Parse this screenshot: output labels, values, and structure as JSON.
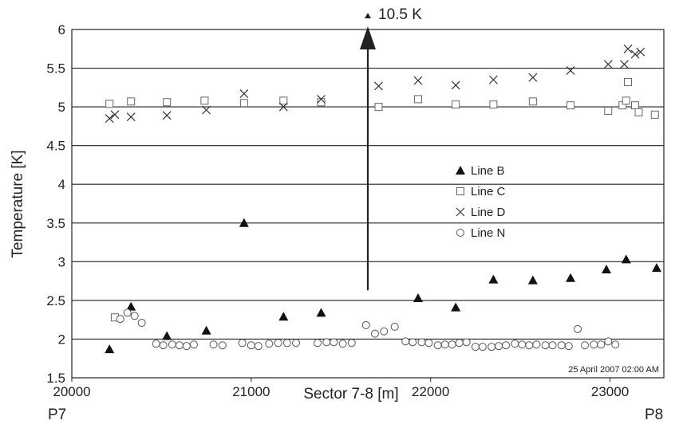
{
  "chart_data": {
    "type": "scatter",
    "xlabel": "Sector 7-8 [m]",
    "ylabel": "Temperature [K]",
    "xlim": [
      20000,
      23300
    ],
    "ylim": [
      1.5,
      6
    ],
    "xticks": [
      20000,
      21000,
      22000,
      23000
    ],
    "yticks": [
      1.5,
      2,
      2.5,
      3,
      3.5,
      4,
      4.5,
      5,
      5.5,
      6
    ],
    "grid": "horizontal",
    "legend_position": "center-right",
    "endpoint_labels": {
      "left": "P7",
      "right": "P8"
    },
    "timestamp": "25 April 2007 02:00 AM",
    "annotation": {
      "text": "10.5 K",
      "x": 21650,
      "y_from": 2.63,
      "y_to": 6.0
    },
    "series": [
      {
        "name": "Line B",
        "marker": "triangle",
        "x": [
          20210,
          20330,
          20530,
          20750,
          20960,
          21180,
          21390,
          21930,
          22140,
          22350,
          22570,
          22780,
          22980,
          23090,
          23260
        ],
        "y": [
          1.87,
          2.42,
          2.04,
          2.11,
          3.5,
          2.29,
          2.34,
          2.53,
          2.41,
          2.77,
          2.76,
          2.79,
          2.9,
          3.03,
          2.92
        ]
      },
      {
        "name": "Line C",
        "marker": "square",
        "x": [
          20210,
          20240,
          20330,
          20530,
          20740,
          20960,
          21180,
          21390,
          21710,
          21930,
          22140,
          22350,
          22570,
          22780,
          22990,
          23070,
          23090,
          23100,
          23140,
          23160,
          23250
        ],
        "y": [
          5.04,
          2.28,
          5.07,
          5.06,
          5.08,
          5.05,
          5.08,
          5.06,
          5.0,
          5.1,
          5.03,
          5.03,
          5.07,
          5.02,
          4.95,
          5.02,
          5.08,
          5.32,
          5.02,
          4.93,
          4.9
        ]
      },
      {
        "name": "Line D",
        "marker": "x",
        "x": [
          20210,
          20240,
          20330,
          20530,
          20750,
          20960,
          21180,
          21390,
          21710,
          21930,
          22140,
          22350,
          22570,
          22780,
          22990,
          23080,
          23100,
          23140,
          23170
        ],
        "y": [
          4.85,
          4.9,
          4.87,
          4.89,
          4.96,
          5.17,
          5.0,
          5.1,
          5.27,
          5.34,
          5.28,
          5.35,
          5.38,
          5.47,
          5.55,
          5.55,
          5.75,
          5.68,
          5.71
        ]
      },
      {
        "name": "Line N",
        "marker": "circle",
        "x": [
          20270,
          20310,
          20350,
          20390,
          20470,
          20510,
          20560,
          20600,
          20640,
          20680,
          20790,
          20840,
          20950,
          21000,
          21040,
          21100,
          21150,
          21200,
          21250,
          21370,
          21420,
          21460,
          21510,
          21560,
          21640,
          21690,
          21740,
          21800,
          21860,
          21900,
          21950,
          21990,
          22040,
          22080,
          22120,
          22160,
          22200,
          22250,
          22290,
          22340,
          22380,
          22420,
          22470,
          22510,
          22550,
          22590,
          22640,
          22680,
          22730,
          22770,
          22820,
          22860,
          22910,
          22950,
          22990,
          23030
        ],
        "y": [
          2.26,
          2.34,
          2.3,
          2.21,
          1.94,
          1.92,
          1.93,
          1.92,
          1.91,
          1.93,
          1.93,
          1.92,
          1.95,
          1.92,
          1.91,
          1.94,
          1.95,
          1.95,
          1.95,
          1.95,
          1.96,
          1.96,
          1.94,
          1.95,
          2.18,
          2.07,
          2.1,
          2.16,
          1.97,
          1.96,
          1.96,
          1.95,
          1.92,
          1.93,
          1.93,
          1.95,
          1.96,
          1.9,
          1.9,
          1.9,
          1.91,
          1.92,
          1.94,
          1.93,
          1.92,
          1.93,
          1.92,
          1.92,
          1.92,
          1.91,
          2.13,
          1.92,
          1.93,
          1.93,
          1.97,
          1.93
        ]
      }
    ]
  }
}
